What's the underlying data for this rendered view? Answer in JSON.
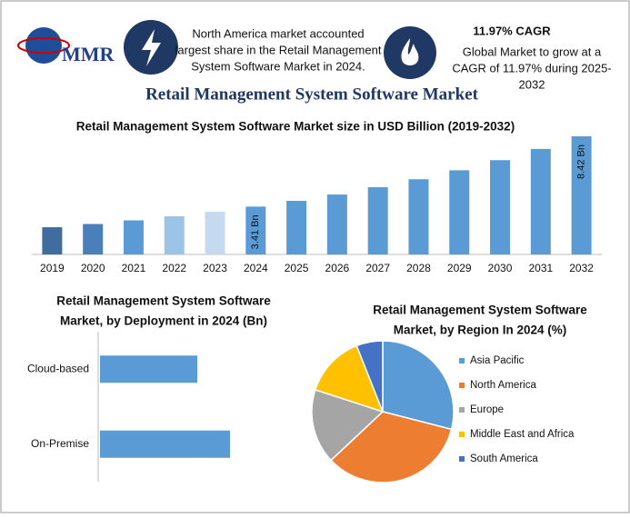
{
  "header": {
    "logo": "MMR",
    "info_left": [
      "North America market accounted",
      "largest share in the Retail Management",
      "System Software Market in 2024."
    ],
    "info_right": {
      "title": "11.97% CAGR",
      "lines": [
        "Global Market to grow at a",
        "CAGR of 11.97% during 2025-",
        "2032"
      ]
    },
    "title": "Retail Management System Software Market"
  },
  "chart_data": [
    {
      "type": "bar",
      "title": [
        "Retail Management System Software Market size in USD Billion (2019-2032)"
      ],
      "categories": [
        "2019",
        "2020",
        "2021",
        "2022",
        "2023",
        "2024",
        "2025",
        "2026",
        "2027",
        "2028",
        "2029",
        "2030",
        "2031",
        "2032"
      ],
      "values": [
        1.94,
        2.17,
        2.43,
        2.72,
        3.05,
        3.41,
        3.82,
        4.27,
        4.79,
        5.36,
        6.0,
        6.72,
        7.52,
        8.42
      ],
      "value_labels": [
        null,
        null,
        null,
        null,
        null,
        "3.41 Bn",
        null,
        null,
        null,
        null,
        null,
        null,
        null,
        "8.42 Bn"
      ],
      "colors": [
        "#3f6e9e",
        "#4a80b9",
        "#5b9bd5",
        "#9dc3e6",
        "#c5d9ef",
        "#5b9bd5",
        "#5b9bd5",
        "#5b9bd5",
        "#5b9bd5",
        "#5b9bd5",
        "#5b9bd5",
        "#5b9bd5",
        "#5b9bd5",
        "#5b9bd5"
      ]
    },
    {
      "type": "hbar",
      "title": [
        "Retail Management System Software",
        "Market, by Deployment in 2024 (Bn)"
      ],
      "categories": [
        "Cloud-based",
        "On-Premise"
      ],
      "values": [
        1.46,
        1.95
      ],
      "color": "#5b9bd5"
    },
    {
      "type": "pie",
      "title": [
        "Retail Management System Software",
        "Market, by Region In 2024 (%)"
      ],
      "categories": [
        "Asia Pacific",
        "North America",
        "Europe",
        "Middle East and Africa",
        "South America"
      ],
      "values": [
        29,
        34,
        17,
        14,
        6
      ],
      "colors": [
        "#5b9bd5",
        "#ed7d31",
        "#a5a5a5",
        "#ffc000",
        "#4472c4"
      ],
      "legend": "right"
    }
  ]
}
